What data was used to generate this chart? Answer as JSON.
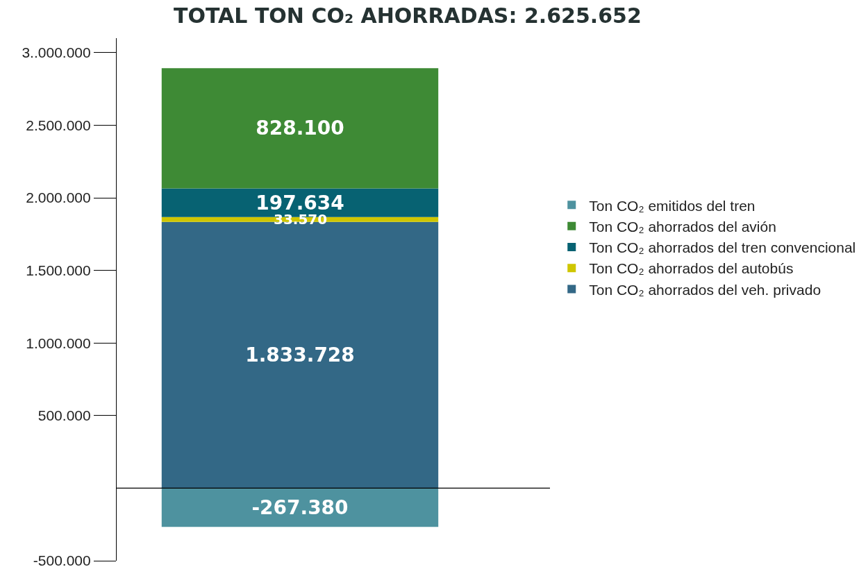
{
  "chart_data": {
    "type": "bar",
    "stacked": true,
    "title": "TOTAL TON CO₂ AHORRADAS: 2.625.652",
    "categories": [
      null
    ],
    "series": [
      {
        "name": "Ton CO₂ emitidos del tren",
        "color": "#4e929f",
        "values": [
          -267380
        ],
        "value_labels": [
          "-267.380"
        ]
      },
      {
        "name": "Ton CO₂ ahorrados del veh. privado",
        "color": "#336886",
        "values": [
          1833728
        ],
        "value_labels": [
          "1.833.728"
        ]
      },
      {
        "name": "Ton CO₂ ahorrados del autobús",
        "color": "#cfc600",
        "values": [
          33570
        ],
        "value_labels": [
          "33.570"
        ]
      },
      {
        "name": "Ton CO₂ ahorrados del tren convencional",
        "color": "#076272",
        "values": [
          197634
        ],
        "value_labels": [
          "197.634"
        ]
      },
      {
        "name": "Ton CO₂ ahorrados del avión",
        "color": "#3e8a35",
        "values": [
          828100
        ],
        "value_labels": [
          "828.100"
        ]
      }
    ],
    "ylim": [
      -500000,
      3100000
    ],
    "yticks": [
      {
        "value": -500000,
        "label": "-500.000"
      },
      {
        "value": 500000,
        "label": "500.000"
      },
      {
        "value": 1000000,
        "label": "1.000.000"
      },
      {
        "value": 1500000,
        "label": "1.500.000"
      },
      {
        "value": 2000000,
        "label": "2.000.000"
      },
      {
        "value": 2500000,
        "label": "2.500.000"
      },
      {
        "value": 3000000,
        "label": "3..000.000"
      }
    ],
    "ref_lines": [
      {
        "axis": "y",
        "value": 0,
        "color": "#000000"
      }
    ],
    "grid": false,
    "legend": "right"
  }
}
